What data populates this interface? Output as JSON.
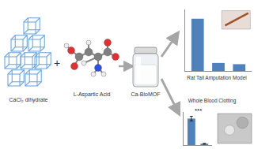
{
  "diagram": {
    "reagents": [
      {
        "label": "CaCl₂ dihydrate"
      },
      {
        "label": "L-Aspartic Acid"
      }
    ],
    "join": "+",
    "product": {
      "label": "Ca-BioMOF"
    }
  },
  "chart_data": [
    {
      "type": "bar",
      "title": "Rat Tail Amputation Model",
      "categories": [
        null,
        null,
        null
      ],
      "values": [
        85,
        13,
        11
      ],
      "color": "#4f81bd",
      "ylim": [
        0,
        100
      ],
      "tick_labels": false
    },
    {
      "type": "bar",
      "title": "Whole Blood Clotting",
      "categories": [
        null,
        null
      ],
      "values": [
        80,
        4
      ],
      "errors": [
        7,
        1
      ],
      "color": "#4f81bd",
      "ylim": [
        0,
        100
      ],
      "tick_labels": false,
      "annotations": [
        {
          "text": "***"
        }
      ]
    }
  ]
}
